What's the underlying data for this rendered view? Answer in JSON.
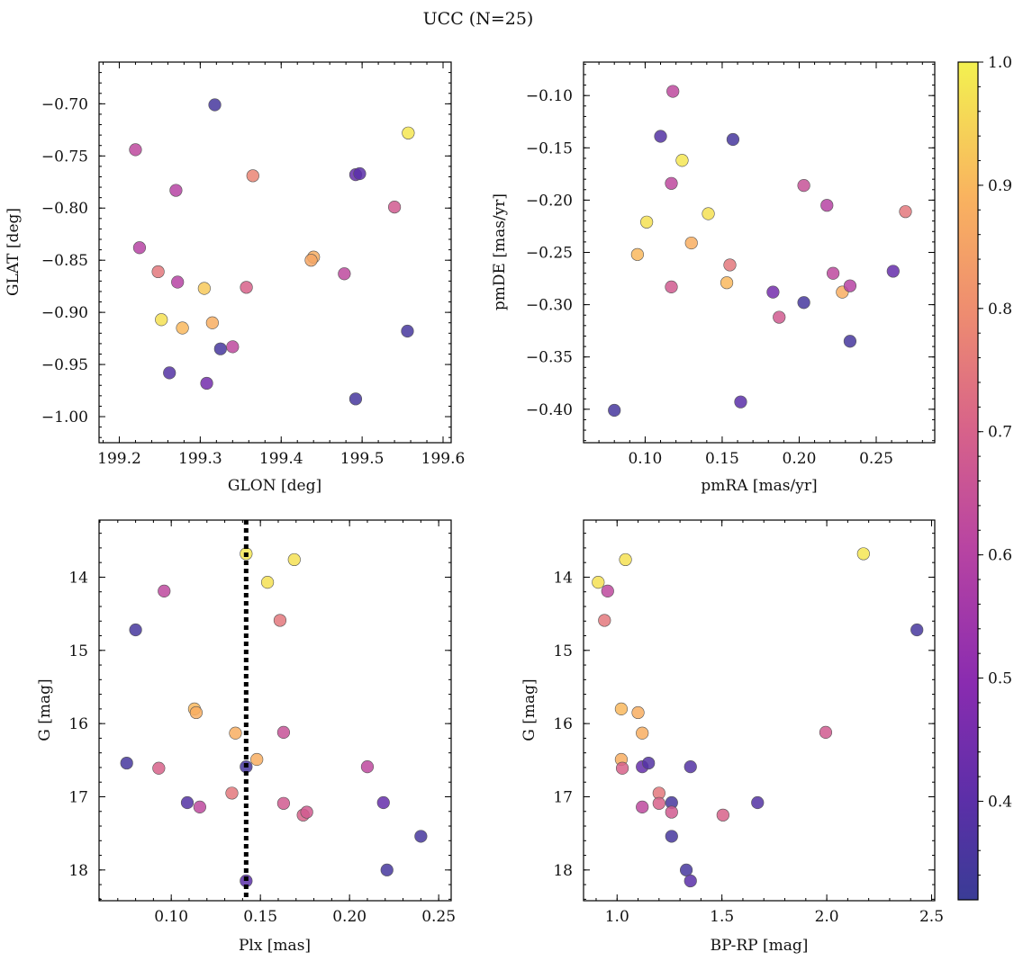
{
  "title": "UCC (N=25)",
  "colorbar": {
    "colormap": "plasma",
    "min": 0.32,
    "max": 1.0,
    "ticks": [
      0.4,
      0.5,
      0.6,
      0.7,
      0.8,
      0.9,
      1.0
    ],
    "tick_labels": [
      "0.4",
      "0.5",
      "0.6",
      "0.7",
      "0.8",
      "0.9",
      "1.0"
    ]
  },
  "chart_data": [
    {
      "type": "scatter",
      "xlabel": "GLON [deg]",
      "ylabel": "GLAT [deg]",
      "xlim": [
        199.175,
        199.61
      ],
      "ylim": [
        -1.025,
        -0.66
      ],
      "xticks": [
        199.2,
        199.3,
        199.4,
        199.5,
        199.6
      ],
      "xtick_labels": [
        "199.2",
        "199.3",
        "199.4",
        "199.5",
        "199.6"
      ],
      "yticks": [
        -0.7,
        -0.75,
        -0.8,
        -0.85,
        -0.9,
        -0.95,
        -1.0
      ],
      "ytick_labels": [
        "−0.70",
        "−0.75",
        "−0.80",
        "−0.85",
        "−0.90",
        "−0.95",
        "−1.00"
      ],
      "x": [
        199.318,
        199.22,
        199.27,
        199.225,
        199.248,
        199.272,
        199.305,
        199.252,
        199.278,
        199.315,
        199.325,
        199.34,
        199.262,
        199.308,
        199.365,
        199.357,
        199.44,
        199.437,
        199.478,
        199.492,
        199.497,
        199.54,
        199.557,
        199.556,
        199.492
      ],
      "y": [
        -0.701,
        -0.744,
        -0.783,
        -0.838,
        -0.861,
        -0.871,
        -0.877,
        -0.907,
        -0.915,
        -0.91,
        -0.935,
        -0.933,
        -0.958,
        -0.968,
        -0.769,
        -0.876,
        -0.847,
        -0.85,
        -0.863,
        -0.768,
        -0.767,
        -0.799,
        -0.728,
        -0.918,
        -0.983
      ],
      "color": [
        0.35,
        0.62,
        0.6,
        0.6,
        0.75,
        0.6,
        0.93,
        0.97,
        0.9,
        0.88,
        0.35,
        0.62,
        0.38,
        0.45,
        0.78,
        0.7,
        0.88,
        0.86,
        0.62,
        0.42,
        0.4,
        0.68,
        0.98,
        0.35,
        0.35
      ]
    },
    {
      "type": "scatter",
      "xlabel": "pmRA [mas/yr]",
      "ylabel": "pmDE [mas/yr]",
      "xlim": [
        0.06,
        0.288
      ],
      "ylim": [
        -0.432,
        -0.068
      ],
      "xticks": [
        0.1,
        0.15,
        0.2,
        0.25
      ],
      "xtick_labels": [
        "0.10",
        "0.15",
        "0.20",
        "0.25"
      ],
      "yticks": [
        -0.1,
        -0.15,
        -0.2,
        -0.25,
        -0.3,
        -0.35,
        -0.4
      ],
      "ytick_labels": [
        "−0.10",
        "−0.15",
        "−0.20",
        "−0.25",
        "−0.30",
        "−0.35",
        "−0.40"
      ],
      "x": [
        0.118,
        0.11,
        0.157,
        0.124,
        0.117,
        0.101,
        0.141,
        0.095,
        0.13,
        0.155,
        0.117,
        0.153,
        0.203,
        0.218,
        0.269,
        0.222,
        0.228,
        0.183,
        0.187,
        0.203,
        0.233,
        0.261,
        0.233,
        0.162,
        0.08
      ],
      "y": [
        -0.096,
        -0.139,
        -0.142,
        -0.162,
        -0.184,
        -0.221,
        -0.213,
        -0.252,
        -0.241,
        -0.262,
        -0.283,
        -0.279,
        -0.186,
        -0.205,
        -0.211,
        -0.27,
        -0.288,
        -0.288,
        -0.312,
        -0.298,
        -0.282,
        -0.268,
        -0.335,
        -0.393,
        -0.401
      ],
      "color": [
        0.62,
        0.38,
        0.35,
        0.98,
        0.62,
        0.97,
        0.97,
        0.9,
        0.88,
        0.75,
        0.68,
        0.9,
        0.65,
        0.6,
        0.75,
        0.62,
        0.88,
        0.45,
        0.68,
        0.35,
        0.6,
        0.42,
        0.35,
        0.4,
        0.35
      ]
    },
    {
      "type": "scatter",
      "xlabel": "Plx [mas]",
      "ylabel": "G [mag]",
      "xlim": [
        0.0595,
        0.257
      ],
      "ylim": [
        18.42,
        13.22
      ],
      "y_inverted": true,
      "vline_x": 0.142,
      "xticks": [
        0.1,
        0.15,
        0.2,
        0.25
      ],
      "xtick_labels": [
        "0.10",
        "0.15",
        "0.20",
        "0.25"
      ],
      "yticks": [
        14,
        15,
        16,
        17,
        18
      ],
      "ytick_labels": [
        "14",
        "15",
        "16",
        "17",
        "18"
      ],
      "x": [
        0.142,
        0.169,
        0.154,
        0.096,
        0.161,
        0.08,
        0.113,
        0.114,
        0.136,
        0.163,
        0.148,
        0.142,
        0.075,
        0.093,
        0.134,
        0.109,
        0.116,
        0.163,
        0.174,
        0.176,
        0.21,
        0.219,
        0.24,
        0.221,
        0.142
      ],
      "y": [
        13.68,
        13.76,
        14.07,
        14.19,
        14.59,
        14.72,
        15.8,
        15.85,
        16.13,
        16.12,
        16.49,
        16.59,
        16.54,
        16.61,
        16.95,
        17.08,
        17.14,
        17.09,
        17.25,
        17.21,
        16.59,
        17.08,
        17.54,
        18.0,
        18.15
      ],
      "color": [
        0.98,
        0.97,
        0.97,
        0.62,
        0.75,
        0.35,
        0.9,
        0.88,
        0.88,
        0.65,
        0.88,
        0.35,
        0.35,
        0.7,
        0.75,
        0.38,
        0.62,
        0.68,
        0.7,
        0.68,
        0.62,
        0.42,
        0.35,
        0.35,
        0.4
      ]
    },
    {
      "type": "scatter",
      "xlabel": "BP-RP [mag]",
      "ylabel": "G [mag]",
      "xlim": [
        0.84,
        2.515
      ],
      "ylim": [
        18.42,
        13.22
      ],
      "y_inverted": true,
      "xticks": [
        1.0,
        1.5,
        2.0,
        2.5
      ],
      "xtick_labels": [
        "1.0",
        "1.5",
        "2.0",
        "2.5"
      ],
      "yticks": [
        14,
        15,
        16,
        17,
        18
      ],
      "ytick_labels": [
        "14",
        "15",
        "16",
        "17",
        "18"
      ],
      "x": [
        2.175,
        1.04,
        0.91,
        0.955,
        0.94,
        2.43,
        1.02,
        1.1,
        1.12,
        1.995,
        1.02,
        1.12,
        1.15,
        1.025,
        1.2,
        1.26,
        1.12,
        1.2,
        1.505,
        1.26,
        1.35,
        1.67,
        1.26,
        1.33,
        1.35
      ],
      "y": [
        13.68,
        13.76,
        14.07,
        14.19,
        14.59,
        14.72,
        15.8,
        15.85,
        16.13,
        16.12,
        16.49,
        16.59,
        16.54,
        16.61,
        16.95,
        17.08,
        17.14,
        17.09,
        17.25,
        17.21,
        16.59,
        17.08,
        17.54,
        18.0,
        18.15
      ],
      "color": [
        0.98,
        0.97,
        0.97,
        0.62,
        0.75,
        0.35,
        0.9,
        0.88,
        0.88,
        0.68,
        0.88,
        0.42,
        0.38,
        0.7,
        0.75,
        0.35,
        0.62,
        0.7,
        0.7,
        0.68,
        0.38,
        0.38,
        0.35,
        0.35,
        0.4
      ]
    }
  ]
}
